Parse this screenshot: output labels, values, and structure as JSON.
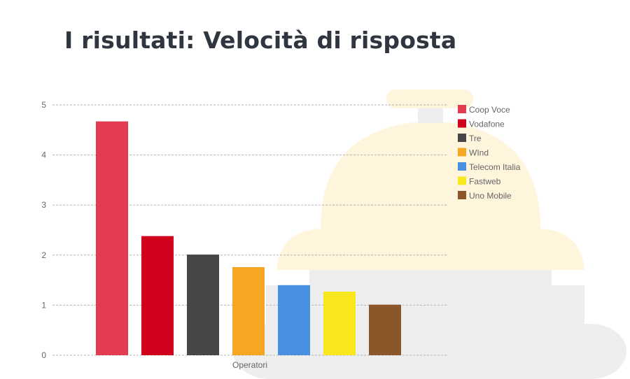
{
  "page": {
    "title": "I risultati: Velocità di risposta"
  },
  "chart_data": {
    "type": "bar",
    "title": "I risultati: Velocità di risposta",
    "xlabel": "Operatori",
    "ylabel": "",
    "ylim": [
      0,
      5
    ],
    "yticks": [
      "0",
      "1",
      "2",
      "3",
      "4",
      "5"
    ],
    "grid": true,
    "legend_position": "top-right",
    "series": [
      {
        "name": "Coop Voce",
        "values": [
          4.67
        ],
        "color": "#e33b50"
      },
      {
        "name": "Vodafone",
        "values": [
          2.38
        ],
        "color": "#d0011b"
      },
      {
        "name": "Tre",
        "values": [
          2.01
        ],
        "color": "#464646"
      },
      {
        "name": "WInd",
        "values": [
          1.76
        ],
        "color": "#f5a623"
      },
      {
        "name": "Telecom Italia",
        "values": [
          1.4
        ],
        "color": "#4a90e2"
      },
      {
        "name": "Fastweb",
        "values": [
          1.27
        ],
        "color": "#f8e71c"
      },
      {
        "name": "Uno Mobile",
        "values": [
          1.01
        ],
        "color": "#8b572a"
      }
    ],
    "background_illustration": "bell-icon"
  }
}
